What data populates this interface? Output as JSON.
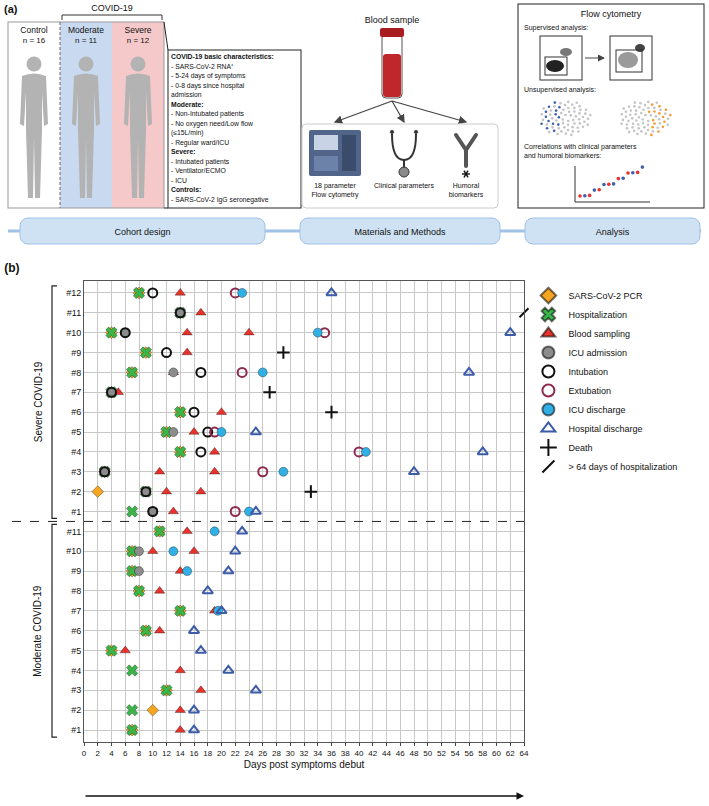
{
  "panel_a": {
    "label": "(a)",
    "group_label": "COVID-19",
    "cohorts": [
      {
        "name": "Control",
        "n": "n = 16",
        "color": "#ffffff"
      },
      {
        "name": "Moderate",
        "n": "n = 11",
        "color": "#c9daf0"
      },
      {
        "name": "Severe",
        "n": "n = 12",
        "color": "#f5c9c9"
      }
    ],
    "characteristics": [
      {
        "heading": "COVID-19 basic characteristics:",
        "items": [
          "- SARS-CoV-2 RNA⁺",
          "- 5-24 days of symptoms",
          "- 0-8 days since hospital",
          "  admission"
        ]
      },
      {
        "heading": "Moderate:",
        "items": [
          "- Non-Intubated patients",
          "- No oxygen need/Low flow",
          "  (≤15L/min)",
          "- Regular ward/ICU"
        ]
      },
      {
        "heading": "Severe:",
        "items": [
          "- Intubated patients",
          "- Ventilator/ECMO",
          "- ICU"
        ]
      },
      {
        "heading": "Controls:",
        "items": [
          "- SARS-CoV-2 IgG seronegative"
        ]
      }
    ],
    "blood_sample": "Blood sample",
    "methods": [
      [
        "18 parameter",
        "Flow cytometry"
      ],
      [
        "Clinical parameters"
      ],
      [
        "Humoral",
        "biomarkers"
      ]
    ],
    "analysis": {
      "title": "Flow cytometry",
      "sections": [
        [
          "Supervised analysis:"
        ],
        [
          "Unsupervised analysis:"
        ],
        [
          "Correlations with clinical parameters",
          "and humoral biomarkers:"
        ]
      ]
    },
    "steps": [
      "Cohort design",
      "Materials and Methods",
      "Analysis"
    ]
  },
  "chart_data": {
    "type": "scatter",
    "title": "(b)",
    "x_label": "Days post symptoms debut",
    "categories": [
      "#1",
      "#2",
      "#3",
      "#4",
      "#5",
      "#6",
      "#7",
      "#8",
      "#9",
      "#10",
      "#11",
      "#1",
      "#2",
      "#3",
      "#4",
      "#5",
      "#6",
      "#7",
      "#8",
      "#9",
      "#10",
      "#11",
      "#12"
    ],
    "groups": [
      {
        "label": "Moderate COVID-19",
        "rows": [
          0,
          10
        ]
      },
      {
        "label": "Severe COVID-19",
        "rows": [
          11,
          22
        ]
      }
    ],
    "xlim": [
      0,
      64
    ],
    "xticks": [
      0,
      2,
      4,
      6,
      8,
      10,
      12,
      14,
      16,
      18,
      20,
      22,
      24,
      26,
      28,
      30,
      32,
      34,
      36,
      38,
      40,
      42,
      44,
      46,
      48,
      50,
      52,
      54,
      56,
      58,
      60,
      62,
      64
    ],
    "grid": true,
    "legend": "right",
    "series": [
      {
        "name": "SARS-CoV-2 PCR",
        "color": "#f4a522",
        "marker": "diamond",
        "x": [
          7,
          10,
          12,
          4,
          9,
          14,
          8,
          7,
          7,
          11,
          2,
          3,
          14,
          12,
          14,
          4,
          7,
          9,
          4,
          14,
          8
        ],
        "y": [
          0,
          1,
          2,
          4,
          5,
          6,
          7,
          8,
          9,
          10,
          12,
          13,
          14,
          15,
          16,
          17,
          18,
          19,
          20,
          21,
          22
        ]
      },
      {
        "name": "Hospitalization",
        "color": "#3bb54a",
        "marker": "x",
        "x": [
          7,
          7,
          12,
          7,
          4,
          9,
          14,
          8,
          7,
          7,
          11,
          7,
          9,
          3,
          14,
          12,
          14,
          4,
          7,
          9,
          4,
          14,
          8
        ],
        "y": [
          0,
          1,
          2,
          3,
          4,
          5,
          6,
          7,
          8,
          9,
          10,
          11,
          12,
          13,
          14,
          15,
          16,
          17,
          18,
          19,
          20,
          21,
          22
        ]
      },
      {
        "name": "Blood sampling",
        "color": "#e8322b",
        "marker": "triangle-up",
        "x": [
          14,
          14,
          17,
          14,
          6,
          11,
          19,
          11,
          14,
          10,
          16,
          15,
          13,
          12,
          17,
          11,
          19,
          19,
          16,
          20,
          5,
          13,
          15,
          15,
          24,
          17,
          14
        ],
        "y": [
          0,
          1,
          2,
          3,
          4,
          5,
          6,
          7,
          8,
          9,
          9,
          10,
          11,
          12,
          12,
          13,
          13,
          14,
          15,
          16,
          17,
          18,
          19,
          20,
          20,
          21,
          22
        ]
      },
      {
        "name": "ICU admission",
        "color": "#8c8c8c",
        "marker": "circle",
        "x": [
          8,
          8,
          10,
          9,
          3,
          13,
          4,
          13,
          6,
          14
        ],
        "y": [
          8,
          9,
          11,
          12,
          13,
          15,
          17,
          18,
          20,
          21
        ]
      },
      {
        "name": "Intubation",
        "color": "#111111",
        "marker": "circle-open",
        "x": [
          10,
          9,
          3,
          17,
          18,
          16,
          4,
          17,
          12,
          6,
          14,
          10
        ],
        "y": [
          11,
          12,
          13,
          14,
          15,
          16,
          17,
          18,
          19,
          20,
          21,
          22
        ]
      },
      {
        "name": "Extubation",
        "color": "#8e2a4e",
        "marker": "circle-open",
        "x": [
          22,
          26,
          40,
          19,
          23,
          35,
          22
        ],
        "y": [
          11,
          13,
          14,
          15,
          18,
          20,
          22
        ]
      },
      {
        "name": "ICU discharge",
        "color": "#31b0e6",
        "marker": "circle",
        "x": [
          19.5,
          15,
          13,
          19,
          24,
          29,
          41,
          20,
          26,
          34,
          23
        ],
        "y": [
          6,
          8,
          9,
          10,
          11,
          13,
          14,
          15,
          18,
          20,
          22
        ]
      },
      {
        "name": "Hospital discharge",
        "color": "#3c5ba9",
        "marker": "triangle-up-open",
        "x": [
          16,
          16,
          25,
          21,
          17,
          16,
          20,
          18,
          21,
          22,
          23,
          25,
          48,
          58,
          25,
          56,
          62,
          36
        ],
        "y": [
          0,
          1,
          2,
          3,
          4,
          5,
          6,
          7,
          8,
          9,
          10,
          11,
          13,
          14,
          15,
          18,
          20,
          22
        ]
      },
      {
        "name": "Death",
        "color": "#111111",
        "marker": "cross-thin-open",
        "x": [
          33,
          36,
          27,
          29
        ],
        "y": [
          12,
          16,
          17,
          19
        ]
      },
      {
        "name": "> 64 days of hospitalization",
        "color": "#111111",
        "marker": "line-ne-open",
        "x": [
          64
        ],
        "y": [
          21
        ]
      }
    ]
  }
}
